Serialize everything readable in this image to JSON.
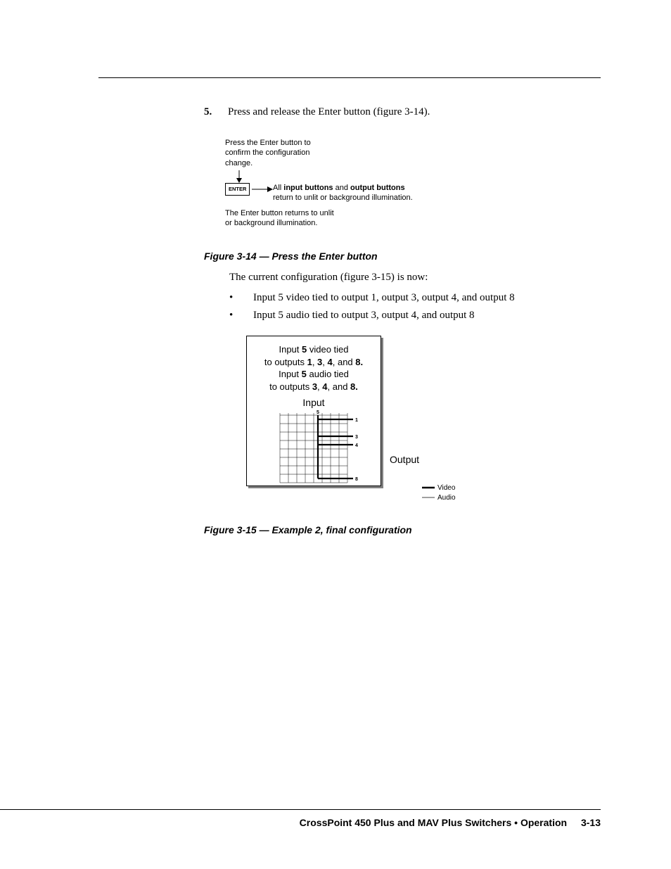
{
  "step": {
    "number": "5.",
    "text": "Press and release the Enter button (figure 3-14)."
  },
  "diagram1": {
    "top_text": "Press the Enter button to confirm the configuration change.",
    "enter_label": "ENTER",
    "right_text_1": "All ",
    "right_text_bold_1": "input buttons",
    "right_text_mid": " and ",
    "right_text_bold_2": "output buttons",
    "right_text_2": " return to unlit or background illumination.",
    "bottom_text": "The Enter button returns to unlit or background illumination."
  },
  "fig14_caption": "Figure 3-14 — Press the Enter button",
  "current_config_text": "The current configuration (figure 3-15) is now:",
  "bullets": [
    "Input 5 video tied to output 1, output 3, output 4, and output 8",
    "Input 5 audio tied to output 3, output 4, and output 8"
  ],
  "diagram2": {
    "line1_a": "Input ",
    "line1_b": "5",
    "line1_c": " video tied",
    "line2_a": "to outputs ",
    "line2_b": "1",
    "line2_c": ", ",
    "line2_d": "3",
    "line2_e": ", ",
    "line2_f": "4",
    "line2_g": ", and ",
    "line2_h": "8.",
    "line3_a": "Input ",
    "line3_b": "5",
    "line3_c": " audio tied",
    "line4_a": "to outputs ",
    "line4_b": "3",
    "line4_c": ", ",
    "line4_d": "4",
    "line4_e": ", and ",
    "line4_f": "8.",
    "input_label": "Input",
    "output_label": "Output",
    "input_num": "5",
    "outputs": [
      "1",
      "3",
      "4",
      "8"
    ],
    "grid": {
      "cols": 8,
      "rows": 8,
      "cell": 12,
      "input_col": 4
    },
    "legend_video": "Video",
    "legend_audio": "Audio"
  },
  "fig15_caption": "Figure 3-15 — Example 2, final configuration",
  "footer": {
    "text": "CrossPoint 450 Plus and MAV Plus Switchers • Operation",
    "page": "3-13"
  },
  "colors": {
    "text": "#000000",
    "bg": "#ffffff",
    "shadow": "#808080"
  }
}
